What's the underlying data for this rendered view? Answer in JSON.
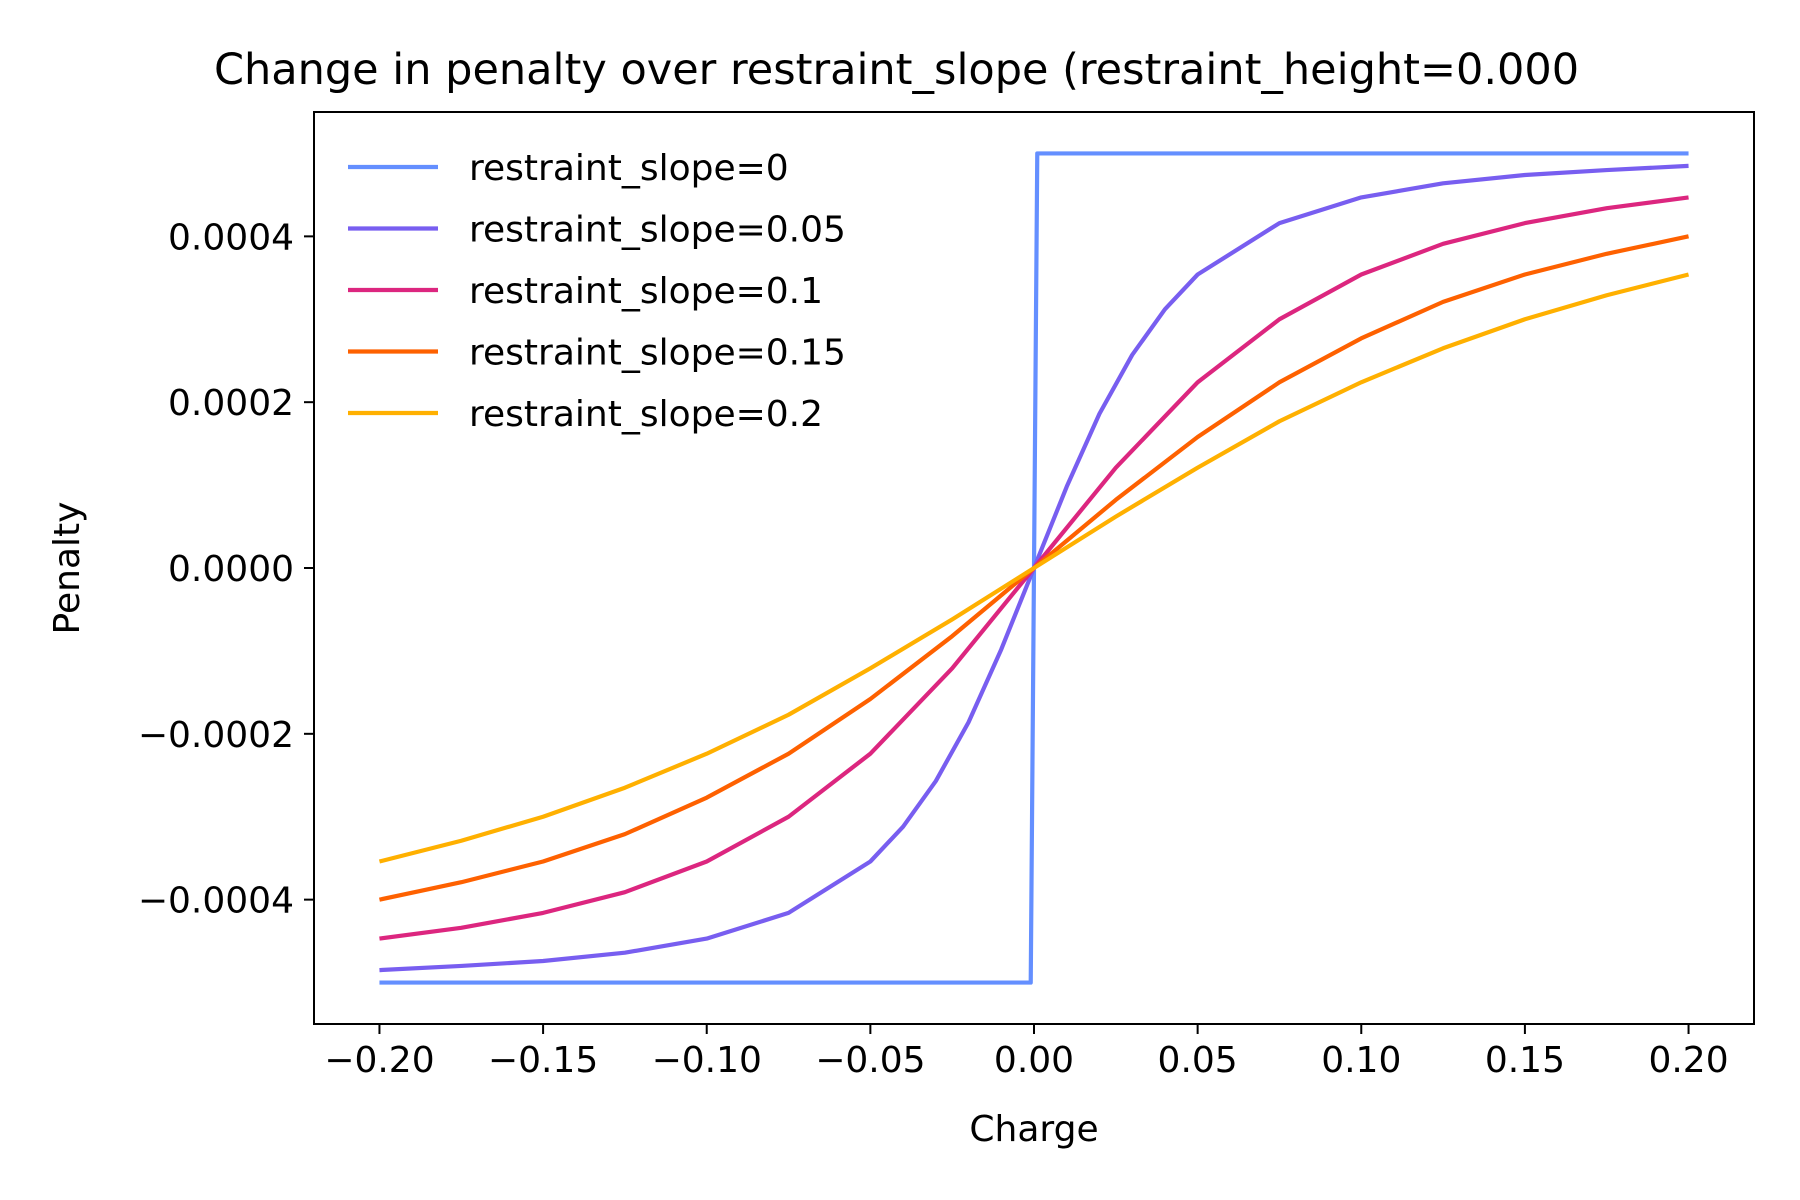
{
  "chart_data": {
    "type": "line",
    "title": "Change in penalty over restraint_slope (restraint_height=0.000",
    "xlabel": "Charge",
    "ylabel": "Penalty",
    "xlim": [
      -0.22,
      0.22
    ],
    "ylim": [
      -0.00055,
      0.00055
    ],
    "xticks": [
      -0.2,
      -0.15,
      -0.1,
      -0.05,
      0.0,
      0.05,
      0.1,
      0.15,
      0.2
    ],
    "xtick_labels": [
      "−0.20",
      "−0.15",
      "−0.10",
      "−0.05",
      "0.00",
      "0.05",
      "0.10",
      "0.15",
      "0.20"
    ],
    "yticks": [
      -0.0004,
      -0.0002,
      0.0,
      0.0002,
      0.0004
    ],
    "ytick_labels": [
      "−0.0004",
      "−0.0002",
      "0.0000",
      "0.0002",
      "0.0004"
    ],
    "grid": false,
    "legend_position": "upper-left",
    "series": [
      {
        "name": "restraint_slope=0",
        "color": "#648fff",
        "x": [
          -0.2,
          -0.1,
          -0.001,
          0.0,
          0.001,
          0.1,
          0.2
        ],
        "y": [
          -0.0005,
          -0.0005,
          -0.0005,
          0.0,
          0.0005,
          0.0005,
          0.0005
        ]
      },
      {
        "name": "restraint_slope=0.05",
        "color": "#785ef0",
        "x": [
          -0.2,
          -0.175,
          -0.15,
          -0.125,
          -0.1,
          -0.075,
          -0.05,
          -0.04,
          -0.03,
          -0.02,
          -0.01,
          0.0,
          0.01,
          0.02,
          0.03,
          0.04,
          0.05,
          0.075,
          0.1,
          0.125,
          0.15,
          0.175,
          0.2
        ],
        "y": [
          -0.000485,
          -0.00048,
          -0.000474,
          -0.000464,
          -0.000447,
          -0.000416,
          -0.000354,
          -0.000312,
          -0.000257,
          -0.000186,
          -9.81e-05,
          0.0,
          9.81e-05,
          0.000186,
          0.000257,
          0.000312,
          0.000354,
          0.000416,
          0.000447,
          0.000464,
          0.000474,
          0.00048,
          0.000485
        ]
      },
      {
        "name": "restraint_slope=0.1",
        "color": "#dc267f",
        "x": [
          -0.2,
          -0.175,
          -0.15,
          -0.125,
          -0.1,
          -0.075,
          -0.05,
          -0.025,
          0.0,
          0.025,
          0.05,
          0.075,
          0.1,
          0.125,
          0.15,
          0.175,
          0.2
        ],
        "y": [
          -0.000447,
          -0.000434,
          -0.000416,
          -0.000391,
          -0.000354,
          -0.0003,
          -0.000224,
          -0.000121,
          0.0,
          0.000121,
          0.000224,
          0.0003,
          0.000354,
          0.000391,
          0.000416,
          0.000434,
          0.000447
        ]
      },
      {
        "name": "restraint_slope=0.15",
        "color": "#fe6100",
        "x": [
          -0.2,
          -0.175,
          -0.15,
          -0.125,
          -0.1,
          -0.075,
          -0.05,
          -0.025,
          0.0,
          0.025,
          0.05,
          0.075,
          0.1,
          0.125,
          0.15,
          0.175,
          0.2
        ],
        "y": [
          -0.0004,
          -0.000379,
          -0.000354,
          -0.000321,
          -0.000277,
          -0.000224,
          -0.000158,
          -8.22e-05,
          0.0,
          8.22e-05,
          0.000158,
          0.000224,
          0.000277,
          0.000321,
          0.000354,
          0.000379,
          0.0004
        ]
      },
      {
        "name": "restraint_slope=0.2",
        "color": "#ffb000",
        "x": [
          -0.2,
          -0.175,
          -0.15,
          -0.125,
          -0.1,
          -0.075,
          -0.05,
          -0.025,
          0.0,
          0.025,
          0.05,
          0.075,
          0.1,
          0.125,
          0.15,
          0.175,
          0.2
        ],
        "y": [
          -0.000354,
          -0.000329,
          -0.0003,
          -0.000265,
          -0.000224,
          -0.000177,
          -0.000121,
          -6.2e-05,
          0.0,
          6.2e-05,
          0.000121,
          0.000177,
          0.000224,
          0.000265,
          0.0003,
          0.000329,
          0.000354
        ]
      }
    ]
  }
}
